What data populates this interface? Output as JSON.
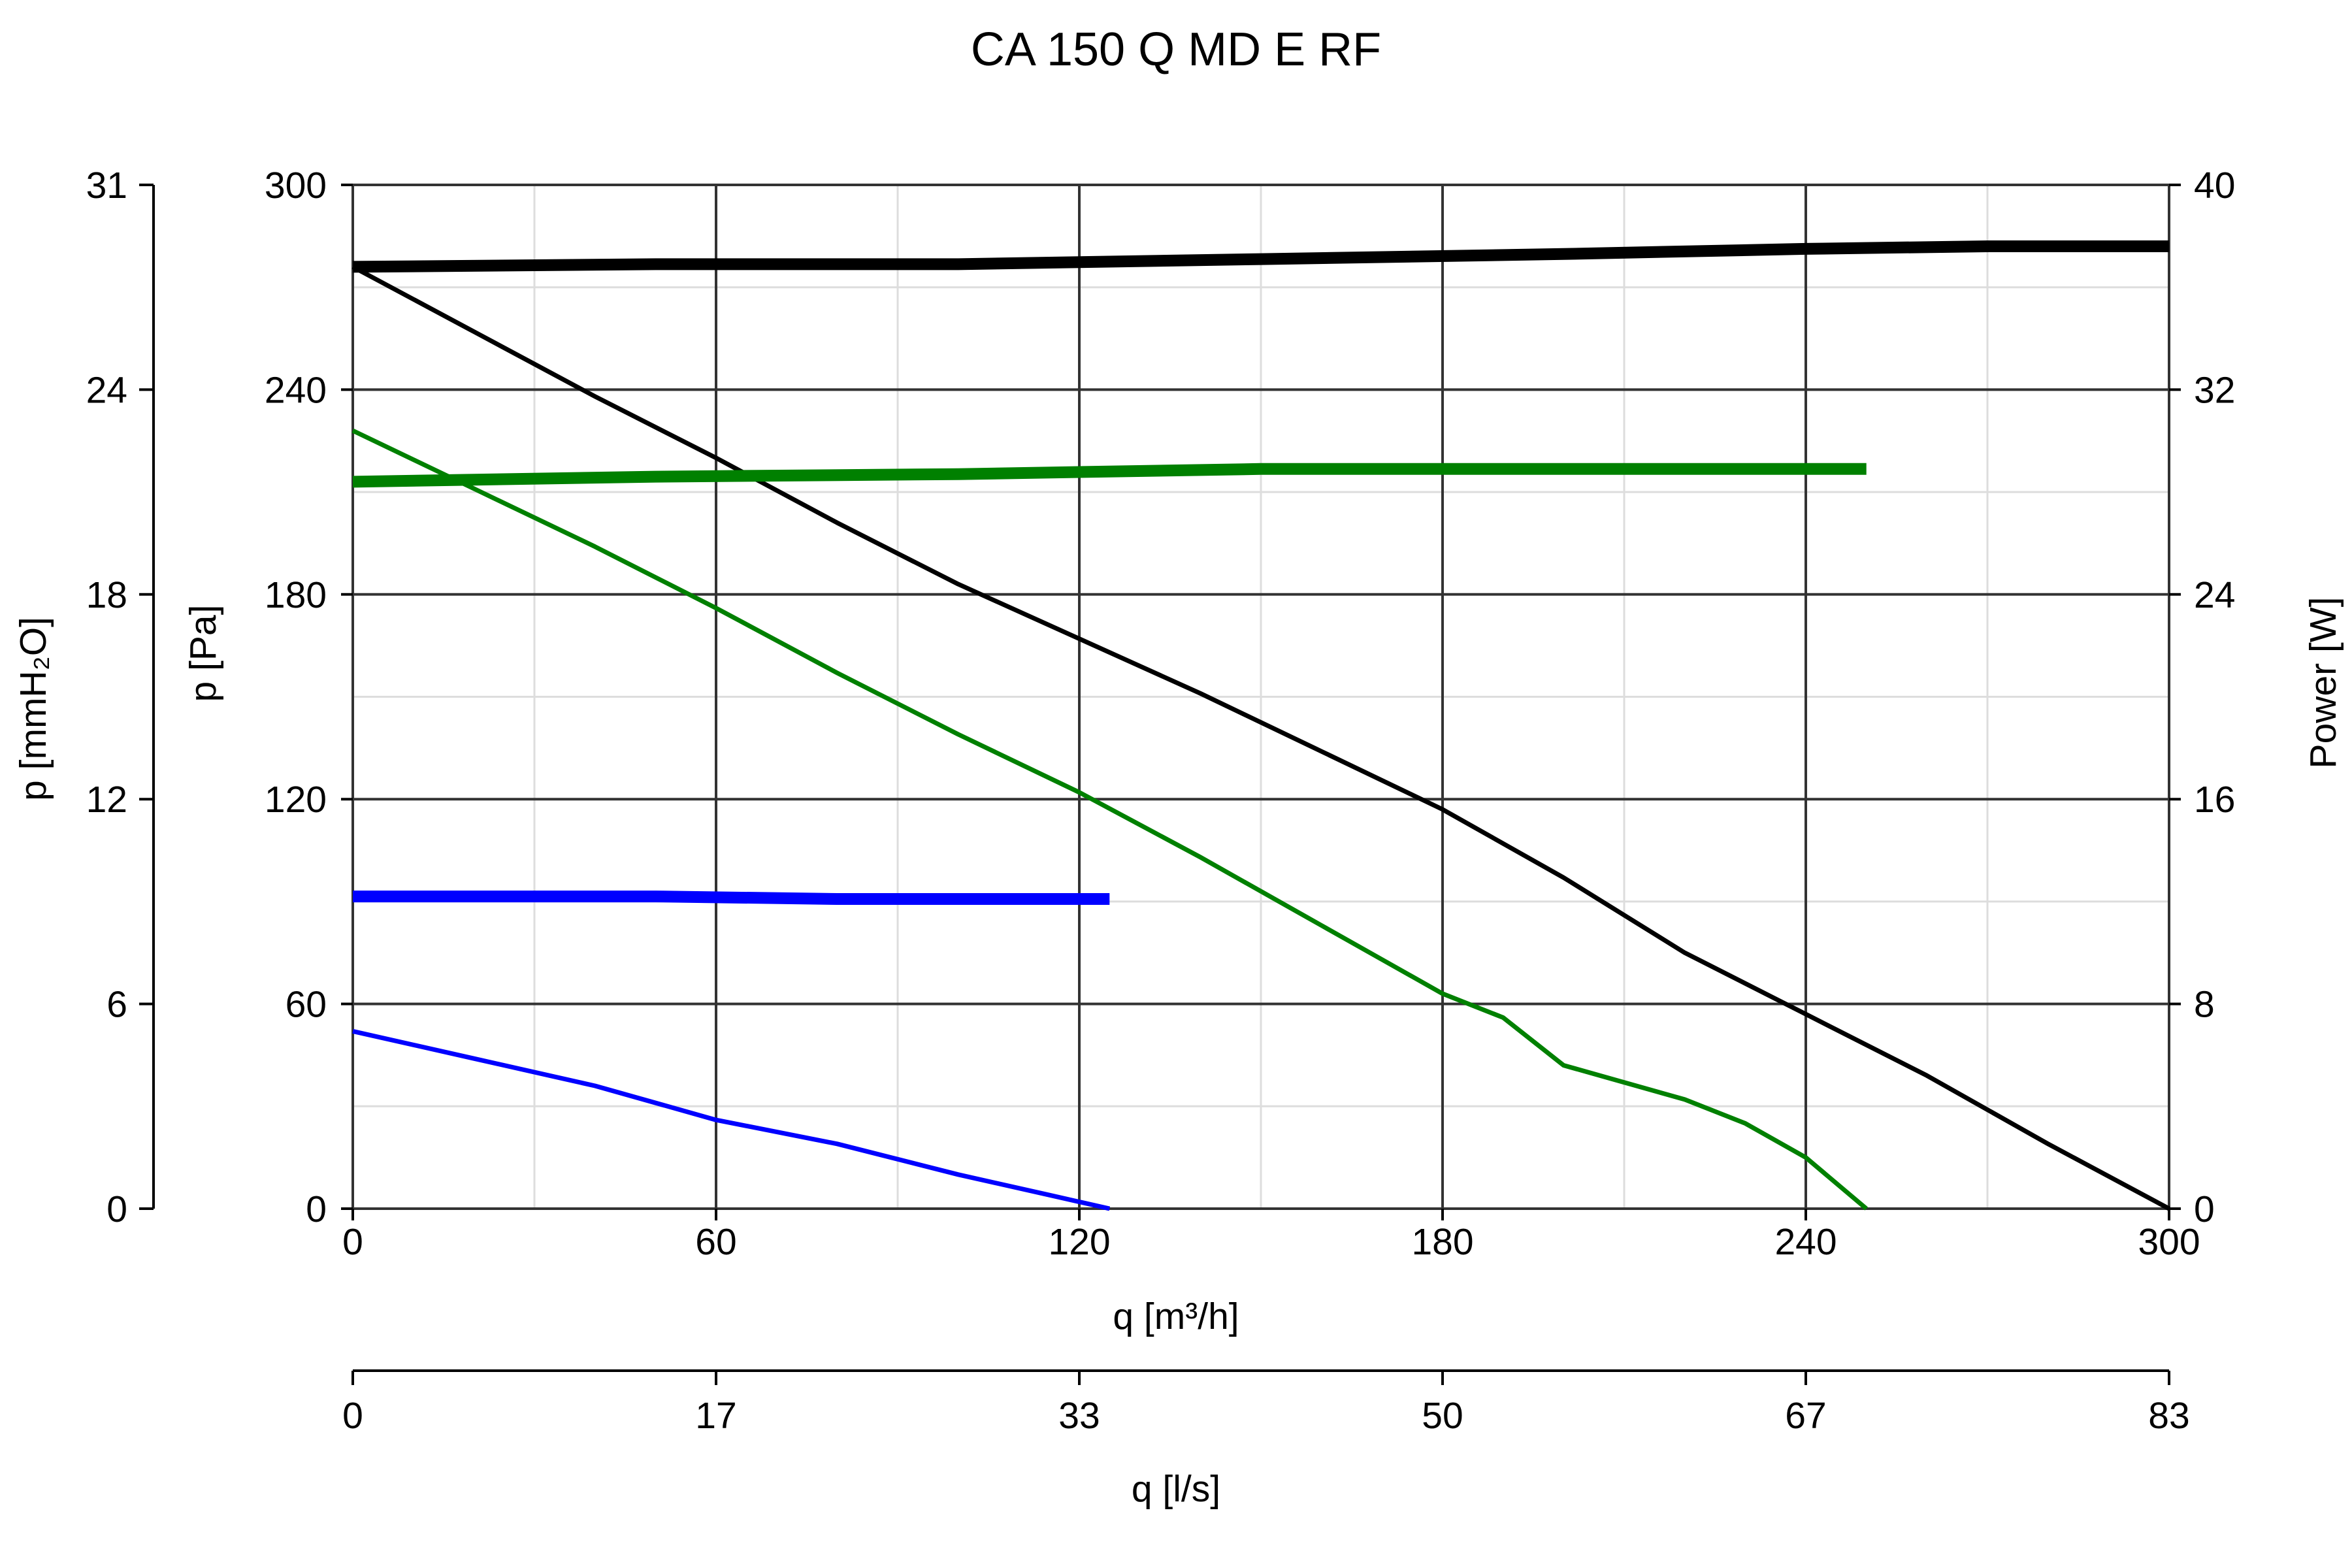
{
  "chart_data": {
    "type": "line",
    "title": "CA 150 Q MD E RF",
    "xlabel": "q [m³/h]",
    "x2label": "q [l/s]",
    "ylabel": "p [Pa]",
    "y_mmh2o_label": "p [mmH₂O]",
    "y_power_label": "Power [W]",
    "xlim": [
      0,
      300
    ],
    "ylim": [
      0,
      300
    ],
    "power_lim": [
      0,
      40
    ],
    "x_ticks": [
      "0",
      "60",
      "120",
      "180",
      "240",
      "300"
    ],
    "x2_ticks": [
      "0",
      "17",
      "33",
      "50",
      "67",
      "83"
    ],
    "y_ticks": [
      "0",
      "60",
      "120",
      "180",
      "240",
      "300"
    ],
    "y_mmh2o_ticks": [
      "0",
      "6",
      "12",
      "18",
      "24",
      "31"
    ],
    "y_power_ticks": [
      "0",
      "8",
      "16",
      "24",
      "32",
      "40"
    ],
    "grid": true,
    "colors": {
      "black": "#000000",
      "green": "#008000",
      "blue": "#0000ff",
      "major_grid": "#333333",
      "minor_grid": "#dddddd"
    },
    "series": [
      {
        "color": "#000000",
        "kind": "pressure",
        "points": [
          [
            0,
            276
          ],
          [
            20,
            257
          ],
          [
            40,
            238
          ],
          [
            60,
            220
          ],
          [
            80,
            201
          ],
          [
            100,
            183
          ],
          [
            120,
            167
          ],
          [
            140,
            151
          ],
          [
            160,
            134
          ],
          [
            180,
            117
          ],
          [
            200,
            97
          ],
          [
            220,
            75
          ],
          [
            240,
            57
          ],
          [
            260,
            39
          ],
          [
            280,
            19
          ],
          [
            300,
            0
          ]
        ]
      },
      {
        "color": "#008000",
        "kind": "pressure",
        "points": [
          [
            0,
            228
          ],
          [
            20,
            211
          ],
          [
            40,
            194
          ],
          [
            60,
            176
          ],
          [
            80,
            157
          ],
          [
            100,
            139
          ],
          [
            120,
            122
          ],
          [
            140,
            103
          ],
          [
            160,
            83
          ],
          [
            180,
            63
          ],
          [
            190,
            56
          ],
          [
            200,
            42
          ],
          [
            220,
            32
          ],
          [
            230,
            25
          ],
          [
            240,
            15
          ],
          [
            250,
            0
          ]
        ]
      },
      {
        "color": "#0000ff",
        "kind": "pressure",
        "points": [
          [
            0,
            52
          ],
          [
            20,
            44
          ],
          [
            40,
            36
          ],
          [
            60,
            26
          ],
          [
            80,
            19
          ],
          [
            100,
            10
          ],
          [
            115,
            4
          ],
          [
            120,
            2
          ],
          [
            125,
            0
          ]
        ]
      },
      {
        "color": "#000000",
        "kind": "power",
        "points": [
          [
            0,
            36.8
          ],
          [
            50,
            36.9
          ],
          [
            100,
            36.9
          ],
          [
            150,
            37.1
          ],
          [
            200,
            37.3
          ],
          [
            240,
            37.5
          ],
          [
            270,
            37.6
          ],
          [
            300,
            37.6
          ]
        ]
      },
      {
        "color": "#008000",
        "kind": "power",
        "points": [
          [
            0,
            28.4
          ],
          [
            50,
            28.6
          ],
          [
            100,
            28.7
          ],
          [
            150,
            28.9
          ],
          [
            200,
            28.9
          ],
          [
            250,
            28.9
          ]
        ]
      },
      {
        "color": "#0000ff",
        "kind": "power",
        "points": [
          [
            0,
            12.2
          ],
          [
            50,
            12.2
          ],
          [
            80,
            12.1
          ],
          [
            125,
            12.1
          ]
        ]
      }
    ]
  }
}
